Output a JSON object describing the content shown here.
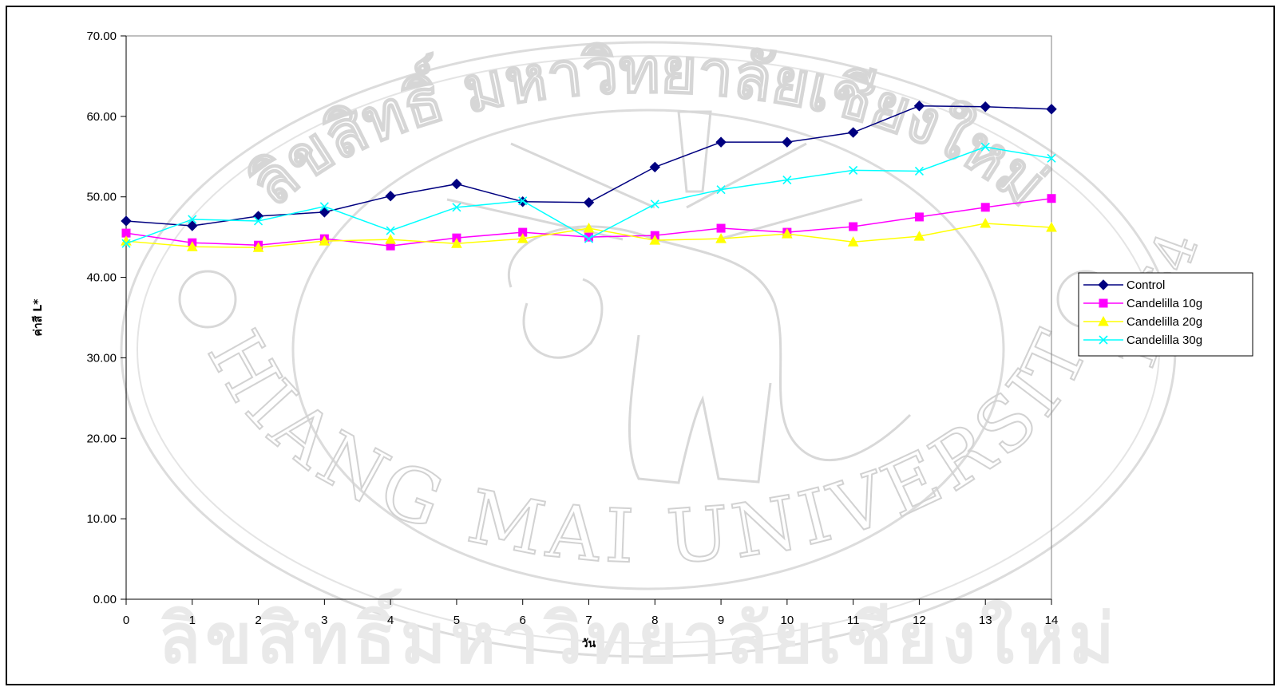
{
  "watermark": {
    "arc_text": "CHIANG MAI UNIVERSITY",
    "year": "1964",
    "thai_top": "ลิขสิทธิ์มหาวิทยาลัยเชียงใหม่",
    "thai_arc": "ลิขสิทธิ์ มหาวิทยาลัยเชียงใหม่",
    "emblem_icon": "elephant-seal-icon"
  },
  "chart_data": {
    "type": "line",
    "xlabel": "วัน",
    "ylabel": "ค่าสี L*",
    "ylim": [
      0,
      70
    ],
    "yticks": [
      "0.00",
      "10.00",
      "20.00",
      "30.00",
      "40.00",
      "50.00",
      "60.00",
      "70.00"
    ],
    "x": [
      0,
      1,
      2,
      3,
      4,
      5,
      6,
      7,
      8,
      9,
      10,
      11,
      12,
      13,
      14
    ],
    "xticks": [
      "0",
      "1",
      "2",
      "3",
      "4",
      "5",
      "6",
      "7",
      "8",
      "9",
      "10",
      "11",
      "12",
      "13",
      "14"
    ],
    "grid": false,
    "legend": "right",
    "series": [
      {
        "name": "Control",
        "color": "#000080",
        "marker": "diamond",
        "values": [
          47.0,
          46.4,
          47.6,
          48.1,
          50.1,
          51.6,
          49.4,
          49.3,
          53.7,
          56.8,
          56.8,
          58.0,
          61.3,
          61.2,
          60.9
        ]
      },
      {
        "name": "Candelilla 10g",
        "color": "#ff00ff",
        "marker": "square",
        "values": [
          45.5,
          44.3,
          44.0,
          44.8,
          43.9,
          44.9,
          45.6,
          45.0,
          45.2,
          46.1,
          45.6,
          46.3,
          47.5,
          48.7,
          49.8
        ]
      },
      {
        "name": "Candelilla 20g",
        "color": "#ffff00",
        "marker": "triangle",
        "values": [
          44.5,
          43.8,
          43.7,
          44.5,
          44.7,
          44.2,
          44.8,
          46.1,
          44.6,
          44.8,
          45.4,
          44.4,
          45.1,
          46.7,
          46.2
        ]
      },
      {
        "name": "Candelilla 30g",
        "color": "#00ffff",
        "marker": "x",
        "values": [
          44.2,
          47.2,
          47.0,
          48.8,
          45.8,
          48.7,
          49.5,
          44.8,
          49.1,
          50.9,
          52.1,
          53.3,
          53.2,
          56.2,
          54.8
        ]
      }
    ]
  }
}
